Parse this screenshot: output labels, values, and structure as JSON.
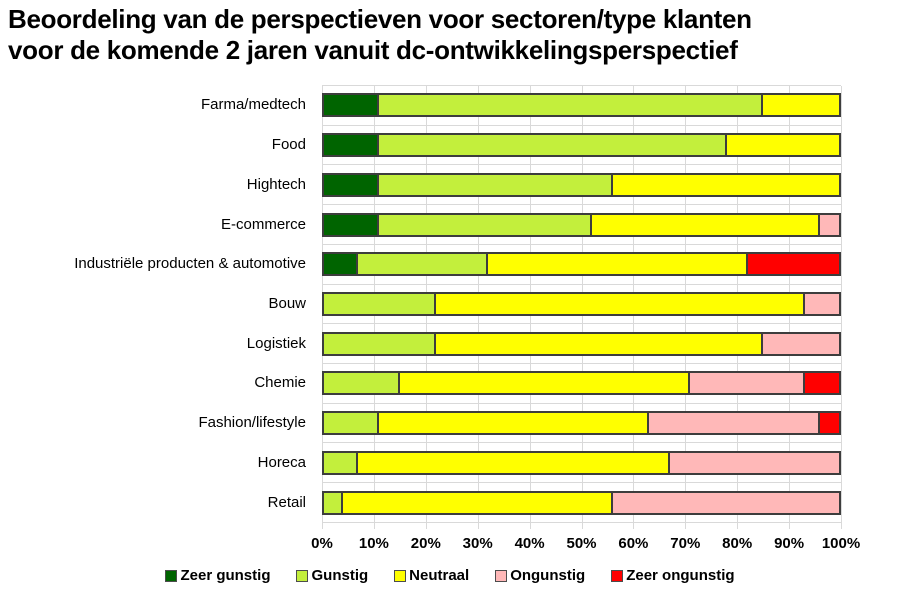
{
  "title": {
    "text": "Beoordeling van de perspectieven voor sectoren/type klanten voor de komende 2 jaren vanuit dc-ontwikkelingsperspectief",
    "lines": [
      "Beoordeling van de perspectieven voor sectoren/type klanten",
      "voor de komende 2 jaren vanuit dc-ontwikkelingsperspectief"
    ]
  },
  "chart_data": {
    "type": "bar",
    "variant": "horizontal-stacked-100pct",
    "title": "Beoordeling van de perspectieven voor sectoren/type klanten voor de komende 2 jaren vanuit dc-ontwikkelingsperspectief",
    "xlabel": "",
    "ylabel": "",
    "unit": "percent",
    "xlim": [
      0,
      100
    ],
    "grid": true,
    "legend_position": "bottom",
    "categories": [
      "Farma/medtech",
      "Food",
      "Hightech",
      "E-commerce",
      "Industriële producten & automotive",
      "Bouw",
      "Logistiek",
      "Chemie",
      "Fashion/lifestyle",
      "Horeca",
      "Retail"
    ],
    "series": [
      {
        "name": "Zeer gunstig",
        "color": "#006400",
        "values": [
          11,
          11,
          11,
          11,
          7,
          0,
          0,
          0,
          0,
          0,
          0
        ]
      },
      {
        "name": "Gunstig",
        "color": "#c3ef3c",
        "values": [
          74,
          67,
          45,
          41,
          25,
          22,
          22,
          15,
          11,
          7,
          4
        ]
      },
      {
        "name": "Neutraal",
        "color": "#ffff00",
        "values": [
          15,
          22,
          44,
          44,
          50,
          71,
          63,
          56,
          52,
          60,
          52
        ]
      },
      {
        "name": "Ongunstig",
        "color": "#ffb8b8",
        "values": [
          0,
          0,
          0,
          4,
          0,
          7,
          15,
          22,
          33,
          33,
          44
        ]
      },
      {
        "name": "Zeer ongunstig",
        "color": "#ff0000",
        "values": [
          0,
          0,
          0,
          0,
          18,
          0,
          0,
          7,
          4,
          0,
          0
        ]
      }
    ],
    "x_axis": {
      "ticks": [
        "0%",
        "10%",
        "20%",
        "30%",
        "40%",
        "50%",
        "60%",
        "70%",
        "80%",
        "90%",
        "100%"
      ],
      "tick_values": [
        0,
        10,
        20,
        30,
        40,
        50,
        60,
        70,
        80,
        90,
        100
      ]
    }
  },
  "colors": {
    "gridline": "#d9d9d9",
    "bar_border": "#3d3d3d",
    "background": "#ffffff",
    "text": "#000000"
  }
}
